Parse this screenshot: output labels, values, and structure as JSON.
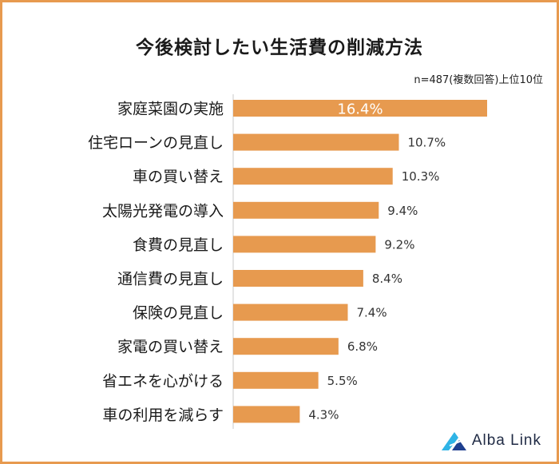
{
  "header": {
    "title": "今後検討したい生活費の削減方法",
    "note": "n=487(複数回答)上位10位"
  },
  "chart_data": {
    "type": "bar",
    "orientation": "horizontal",
    "title": "今後検討したい生活費の削減方法",
    "categories": [
      "家庭菜園の実施",
      "住宅ローンの見直し",
      "車の買い替え",
      "太陽光発電の導入",
      "食費の見直し",
      "通信費の見直し",
      "保険の見直し",
      "家電の買い替え",
      "省エネを心がける",
      "車の利用を減らす"
    ],
    "values": [
      16.4,
      10.7,
      10.3,
      9.4,
      9.2,
      8.4,
      7.4,
      6.8,
      5.5,
      4.3
    ],
    "value_labels": [
      "16.4%",
      "10.7%",
      "10.3%",
      "9.4%",
      "9.2%",
      "8.4%",
      "7.4%",
      "6.8%",
      "5.5%",
      "4.3%"
    ],
    "unit": "%",
    "xlim": [
      0,
      16.4
    ],
    "bar_color": "#e79a4f"
  },
  "logo": {
    "text": "Alba Link"
  }
}
